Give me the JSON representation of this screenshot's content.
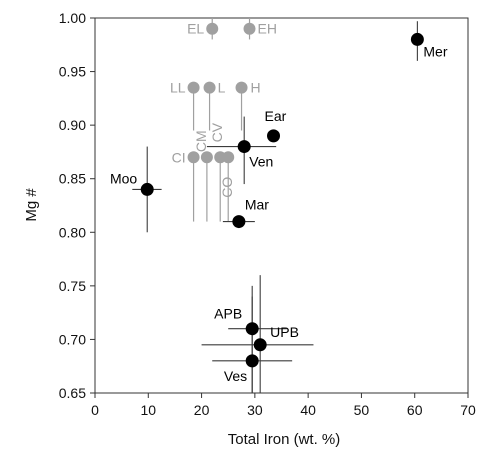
{
  "chart_data": {
    "type": "scatter",
    "xlabel": "Total Iron (wt. %)",
    "ylabel": "Mg #",
    "xlim": [
      0,
      70
    ],
    "ylim": [
      0.65,
      1.0
    ],
    "xticks": [
      "0",
      "10",
      "20",
      "30",
      "40",
      "50",
      "60",
      "70"
    ],
    "yticks": [
      "0.65",
      "0.70",
      "0.75",
      "0.80",
      "0.85",
      "0.90",
      "0.95",
      "1.00"
    ],
    "grid": false,
    "colors": {
      "planet": "#000000",
      "meteorite": "#a0a0a0",
      "errorbar": "#3c3c3c"
    },
    "series": [
      {
        "group": "planetary bodies",
        "points": [
          {
            "label": "Mer",
            "x": 60.5,
            "y": 0.98,
            "yerr": [
              0.96,
              0.997
            ]
          },
          {
            "label": "Ear",
            "x": 33.5,
            "y": 0.89
          },
          {
            "label": "Ven",
            "x": 28,
            "y": 0.88,
            "xerr": [
              21,
              34
            ],
            "yerr": [
              0.845,
              0.908
            ]
          },
          {
            "label": "Moo",
            "x": 9.8,
            "y": 0.84,
            "xerr": [
              7,
              12.5
            ],
            "yerr": [
              0.8,
              0.88
            ]
          },
          {
            "label": "Mar",
            "x": 27,
            "y": 0.81,
            "xerr": [
              24,
              30
            ]
          },
          {
            "label": "APB",
            "x": 29.5,
            "y": 0.71,
            "xerr": [
              25,
              36
            ],
            "yerr": [
              0.65,
              0.75
            ]
          },
          {
            "label": "UPB",
            "x": 31,
            "y": 0.695,
            "xerr": [
              20,
              41
            ],
            "yerr": [
              0.65,
              0.76
            ]
          },
          {
            "label": "Ves",
            "x": 29.5,
            "y": 0.68,
            "xerr": [
              22,
              37
            ],
            "yerr": [
              0.65,
              0.74
            ]
          }
        ]
      },
      {
        "group": "meteorite classes",
        "points": [
          {
            "label": "EL",
            "x": 22,
            "y": 0.99
          },
          {
            "label": "EH",
            "x": 29,
            "y": 0.99
          },
          {
            "label": "LL",
            "x": 18.5,
            "y": 0.935
          },
          {
            "label": "L",
            "x": 21.5,
            "y": 0.935
          },
          {
            "label": "H",
            "x": 27.5,
            "y": 0.935
          },
          {
            "label": "CI",
            "x": 18.5,
            "y": 0.87
          },
          {
            "label": "CM",
            "x": 21,
            "y": 0.87
          },
          {
            "label": "CV",
            "x": 23.5,
            "y": 0.87
          },
          {
            "label": "CO",
            "x": 25,
            "y": 0.87
          }
        ]
      }
    ]
  }
}
